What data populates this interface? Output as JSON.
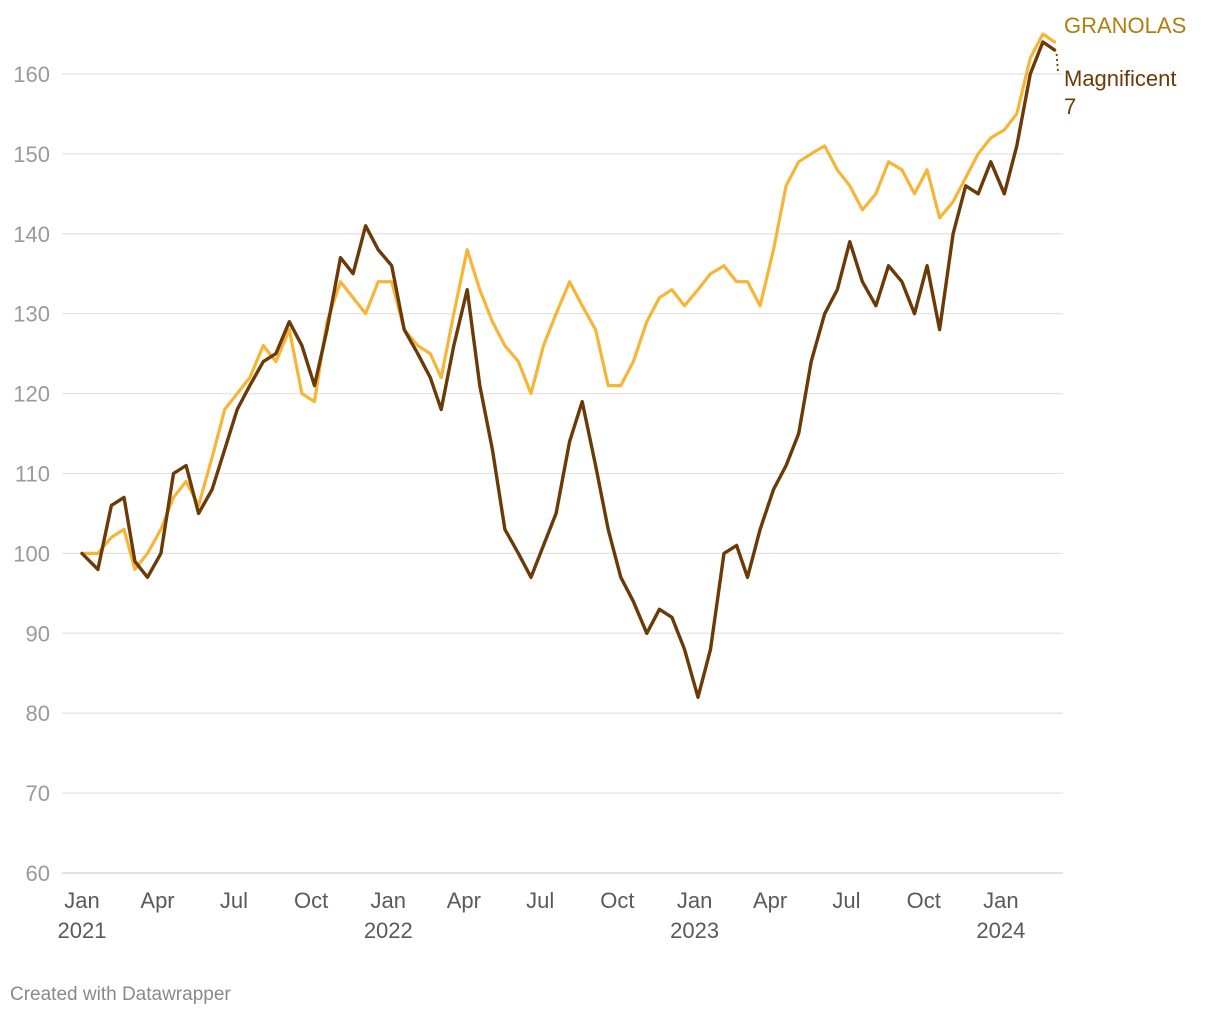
{
  "chart_data": {
    "type": "line",
    "yticks": [
      60,
      70,
      80,
      90,
      100,
      110,
      120,
      130,
      140,
      150,
      160
    ],
    "ylim": [
      60,
      166
    ],
    "xlim": [
      "2021-01-01",
      "2024-03-15"
    ],
    "xticks": [
      {
        "date": "2021-01-01",
        "line1": "Jan",
        "line2": "2021"
      },
      {
        "date": "2021-04-01",
        "line1": "Apr",
        "line2": ""
      },
      {
        "date": "2021-07-01",
        "line1": "Jul",
        "line2": ""
      },
      {
        "date": "2021-10-01",
        "line1": "Oct",
        "line2": ""
      },
      {
        "date": "2022-01-01",
        "line1": "Jan",
        "line2": "2022"
      },
      {
        "date": "2022-04-01",
        "line1": "Apr",
        "line2": ""
      },
      {
        "date": "2022-07-01",
        "line1": "Jul",
        "line2": ""
      },
      {
        "date": "2022-10-01",
        "line1": "Oct",
        "line2": ""
      },
      {
        "date": "2023-01-01",
        "line1": "Jan",
        "line2": "2023"
      },
      {
        "date": "2023-04-01",
        "line1": "Apr",
        "line2": ""
      },
      {
        "date": "2023-07-01",
        "line1": "Jul",
        "line2": ""
      },
      {
        "date": "2023-10-01",
        "line1": "Oct",
        "line2": ""
      },
      {
        "date": "2024-01-01",
        "line1": "Jan",
        "line2": "2024"
      }
    ],
    "grid": true,
    "series": [
      {
        "name": "GRANOLAS",
        "color": "#f7b538",
        "label_color": "#b07d10",
        "points": [
          [
            "2021-01-01",
            100
          ],
          [
            "2021-01-20",
            100
          ],
          [
            "2021-02-05",
            102
          ],
          [
            "2021-02-20",
            103
          ],
          [
            "2021-03-05",
            98
          ],
          [
            "2021-03-20",
            100
          ],
          [
            "2021-04-05",
            103
          ],
          [
            "2021-04-20",
            107
          ],
          [
            "2021-05-05",
            109
          ],
          [
            "2021-05-20",
            106
          ],
          [
            "2021-06-05",
            112
          ],
          [
            "2021-06-20",
            118
          ],
          [
            "2021-07-05",
            120
          ],
          [
            "2021-07-20",
            122
          ],
          [
            "2021-08-05",
            126
          ],
          [
            "2021-08-20",
            124
          ],
          [
            "2021-09-05",
            128
          ],
          [
            "2021-09-20",
            120
          ],
          [
            "2021-10-05",
            119
          ],
          [
            "2021-10-20",
            129
          ],
          [
            "2021-11-05",
            134
          ],
          [
            "2021-11-20",
            132
          ],
          [
            "2021-12-05",
            130
          ],
          [
            "2021-12-20",
            134
          ],
          [
            "2022-01-05",
            134
          ],
          [
            "2022-01-20",
            128
          ],
          [
            "2022-02-05",
            126
          ],
          [
            "2022-02-20",
            125
          ],
          [
            "2022-03-05",
            122
          ],
          [
            "2022-03-20",
            130
          ],
          [
            "2022-04-05",
            138
          ],
          [
            "2022-04-20",
            133
          ],
          [
            "2022-05-05",
            129
          ],
          [
            "2022-05-20",
            126
          ],
          [
            "2022-06-05",
            124
          ],
          [
            "2022-06-20",
            120
          ],
          [
            "2022-07-05",
            126
          ],
          [
            "2022-07-20",
            130
          ],
          [
            "2022-08-05",
            134
          ],
          [
            "2022-08-20",
            131
          ],
          [
            "2022-09-05",
            128
          ],
          [
            "2022-09-20",
            121
          ],
          [
            "2022-10-05",
            121
          ],
          [
            "2022-10-20",
            124
          ],
          [
            "2022-11-05",
            129
          ],
          [
            "2022-11-20",
            132
          ],
          [
            "2022-12-05",
            133
          ],
          [
            "2022-12-20",
            131
          ],
          [
            "2023-01-05",
            133
          ],
          [
            "2023-01-20",
            135
          ],
          [
            "2023-02-05",
            136
          ],
          [
            "2023-02-20",
            134
          ],
          [
            "2023-03-05",
            134
          ],
          [
            "2023-03-20",
            131
          ],
          [
            "2023-04-05",
            138
          ],
          [
            "2023-04-20",
            146
          ],
          [
            "2023-05-05",
            149
          ],
          [
            "2023-05-20",
            150
          ],
          [
            "2023-06-05",
            151
          ],
          [
            "2023-06-20",
            148
          ],
          [
            "2023-07-05",
            146
          ],
          [
            "2023-07-20",
            143
          ],
          [
            "2023-08-05",
            145
          ],
          [
            "2023-08-20",
            149
          ],
          [
            "2023-09-05",
            148
          ],
          [
            "2023-09-20",
            145
          ],
          [
            "2023-10-05",
            148
          ],
          [
            "2023-10-20",
            142
          ],
          [
            "2023-11-05",
            144
          ],
          [
            "2023-11-20",
            147
          ],
          [
            "2023-12-05",
            150
          ],
          [
            "2023-12-20",
            152
          ],
          [
            "2024-01-05",
            153
          ],
          [
            "2024-01-20",
            155
          ],
          [
            "2024-02-05",
            162
          ],
          [
            "2024-02-20",
            165
          ],
          [
            "2024-03-05",
            164
          ]
        ]
      },
      {
        "name": "Magnificent 7",
        "label_lines": [
          "Magnificent",
          "7"
        ],
        "color": "#6b3a06",
        "label_color": "#6b3a06",
        "points": [
          [
            "2021-01-01",
            100
          ],
          [
            "2021-01-20",
            98
          ],
          [
            "2021-02-05",
            106
          ],
          [
            "2021-02-20",
            107
          ],
          [
            "2021-03-05",
            99
          ],
          [
            "2021-03-20",
            97
          ],
          [
            "2021-04-05",
            100
          ],
          [
            "2021-04-20",
            110
          ],
          [
            "2021-05-05",
            111
          ],
          [
            "2021-05-20",
            105
          ],
          [
            "2021-06-05",
            108
          ],
          [
            "2021-06-20",
            113
          ],
          [
            "2021-07-05",
            118
          ],
          [
            "2021-07-20",
            121
          ],
          [
            "2021-08-05",
            124
          ],
          [
            "2021-08-20",
            125
          ],
          [
            "2021-09-05",
            129
          ],
          [
            "2021-09-20",
            126
          ],
          [
            "2021-10-05",
            121
          ],
          [
            "2021-10-20",
            128
          ],
          [
            "2021-11-05",
            137
          ],
          [
            "2021-11-20",
            135
          ],
          [
            "2021-12-05",
            141
          ],
          [
            "2021-12-20",
            138
          ],
          [
            "2022-01-05",
            136
          ],
          [
            "2022-01-20",
            128
          ],
          [
            "2022-02-05",
            125
          ],
          [
            "2022-02-20",
            122
          ],
          [
            "2022-03-05",
            118
          ],
          [
            "2022-03-20",
            126
          ],
          [
            "2022-04-05",
            133
          ],
          [
            "2022-04-20",
            121
          ],
          [
            "2022-05-05",
            113
          ],
          [
            "2022-05-20",
            103
          ],
          [
            "2022-06-05",
            100
          ],
          [
            "2022-06-20",
            97
          ],
          [
            "2022-07-05",
            101
          ],
          [
            "2022-07-20",
            105
          ],
          [
            "2022-08-05",
            114
          ],
          [
            "2022-08-20",
            119
          ],
          [
            "2022-09-05",
            111
          ],
          [
            "2022-09-20",
            103
          ],
          [
            "2022-10-05",
            97
          ],
          [
            "2022-10-20",
            94
          ],
          [
            "2022-11-05",
            90
          ],
          [
            "2022-11-20",
            93
          ],
          [
            "2022-12-05",
            92
          ],
          [
            "2022-12-20",
            88
          ],
          [
            "2023-01-05",
            82
          ],
          [
            "2023-01-20",
            88
          ],
          [
            "2023-02-05",
            100
          ],
          [
            "2023-02-20",
            101
          ],
          [
            "2023-03-05",
            97
          ],
          [
            "2023-03-20",
            103
          ],
          [
            "2023-04-05",
            108
          ],
          [
            "2023-04-20",
            111
          ],
          [
            "2023-05-05",
            115
          ],
          [
            "2023-05-20",
            124
          ],
          [
            "2023-06-05",
            130
          ],
          [
            "2023-06-20",
            133
          ],
          [
            "2023-07-05",
            139
          ],
          [
            "2023-07-20",
            134
          ],
          [
            "2023-08-05",
            131
          ],
          [
            "2023-08-20",
            136
          ],
          [
            "2023-09-05",
            134
          ],
          [
            "2023-09-20",
            130
          ],
          [
            "2023-10-05",
            136
          ],
          [
            "2023-10-20",
            128
          ],
          [
            "2023-11-05",
            140
          ],
          [
            "2023-11-20",
            146
          ],
          [
            "2023-12-05",
            145
          ],
          [
            "2023-12-20",
            149
          ],
          [
            "2024-01-05",
            145
          ],
          [
            "2024-01-20",
            151
          ],
          [
            "2024-02-05",
            160
          ],
          [
            "2024-02-20",
            164
          ],
          [
            "2024-03-05",
            163
          ]
        ]
      }
    ]
  },
  "credit": "Created with Datawrapper"
}
